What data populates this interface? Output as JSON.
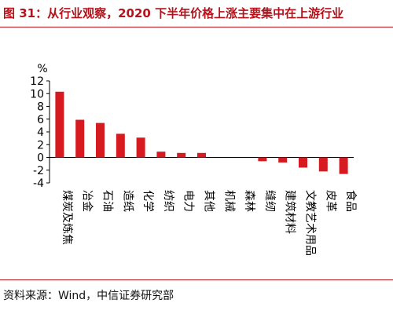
{
  "figure": {
    "title": "图 31：从行业观察，2020 下半年价格上涨主要集中在上游行业",
    "source": "资料来源：Wind，中信证券研究部"
  },
  "colors": {
    "accent": "#b5121b",
    "bar": "#d71920",
    "axis": "#000000"
  },
  "chart_data": {
    "type": "bar",
    "unit_label": "%",
    "categories": [
      "煤炭及炼焦",
      "冶金",
      "石油",
      "造纸",
      "化学",
      "纺织",
      "电力",
      "其他",
      "机械",
      "森林",
      "缝纫",
      "建筑材料",
      "文教艺术用品",
      "皮革",
      "食品"
    ],
    "values": [
      10.3,
      5.9,
      5.4,
      3.7,
      3.1,
      0.9,
      0.7,
      0.7,
      0.0,
      0.0,
      -0.6,
      -0.8,
      -1.6,
      -2.2,
      -2.6
    ],
    "ylim": [
      -4,
      12
    ],
    "yticks": [
      -4,
      -2,
      0,
      2,
      4,
      6,
      8,
      10,
      12
    ],
    "grid": false,
    "legend": "none"
  }
}
